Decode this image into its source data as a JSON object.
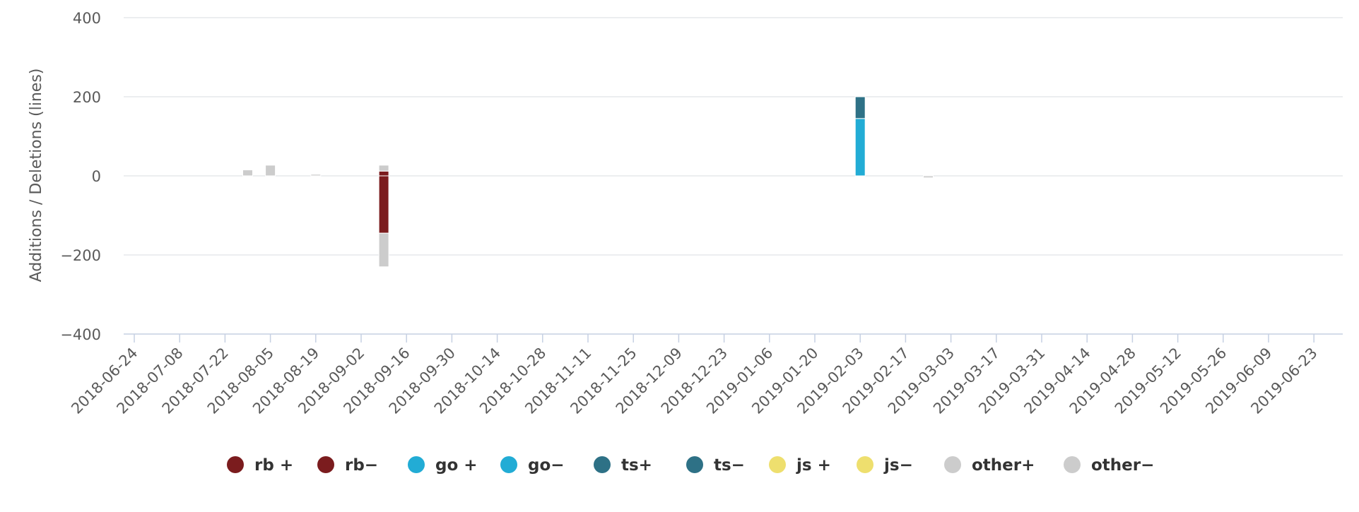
{
  "chart_data": {
    "type": "bar",
    "stacked": true,
    "title": "",
    "xlabel": "",
    "ylabel": "Additions / Deletions (lines)",
    "ylim": [
      -400,
      400
    ],
    "yticks": [
      400,
      200,
      0,
      -200,
      -400
    ],
    "ytick_labels": [
      "400",
      "200",
      "0",
      "−200",
      "−400"
    ],
    "grid": true,
    "legend_position": "bottom",
    "x_ticks": [
      "2018-06-24",
      "2018-07-08",
      "2018-07-22",
      "2018-08-05",
      "2018-08-19",
      "2018-09-02",
      "2018-09-16",
      "2018-09-30",
      "2018-10-14",
      "2018-10-28",
      "2018-11-11",
      "2018-11-25",
      "2018-12-09",
      "2018-12-23",
      "2019-01-06",
      "2019-01-20",
      "2019-02-03",
      "2019-02-17",
      "2019-03-03",
      "2019-03-17",
      "2019-03-31",
      "2019-04-14",
      "2019-04-28",
      "2019-05-12",
      "2019-05-26",
      "2019-06-09",
      "2019-06-23"
    ],
    "series": [
      {
        "name": "rb +",
        "color": "#7b1c1e",
        "points": [
          {
            "x": "2018-09-09",
            "y": 12
          }
        ]
      },
      {
        "name": "rb−",
        "color": "#7b1c1e",
        "points": [
          {
            "x": "2018-09-09",
            "y": -145
          }
        ]
      },
      {
        "name": "go +",
        "color": "#22acd5",
        "points": [
          {
            "x": "2019-02-03",
            "y": 145
          }
        ]
      },
      {
        "name": "go−",
        "color": "#22acd5",
        "points": []
      },
      {
        "name": "ts+",
        "color": "#2e7186",
        "points": [
          {
            "x": "2019-02-03",
            "y": 55
          }
        ]
      },
      {
        "name": "ts−",
        "color": "#2e7186",
        "points": []
      },
      {
        "name": "js +",
        "color": "#eedf6e",
        "points": []
      },
      {
        "name": "js−",
        "color": "#eedf6e",
        "points": []
      },
      {
        "name": "other+",
        "color": "#cccccc",
        "points": [
          {
            "x": "2018-07-29",
            "y": 15
          },
          {
            "x": "2018-08-05",
            "y": 27
          },
          {
            "x": "2018-08-19",
            "y": 4
          },
          {
            "x": "2018-09-09",
            "y": 15
          }
        ]
      },
      {
        "name": "other−",
        "color": "#cccccc",
        "points": [
          {
            "x": "2018-09-09",
            "y": -85
          },
          {
            "x": "2019-02-24",
            "y": -5
          }
        ]
      }
    ]
  }
}
